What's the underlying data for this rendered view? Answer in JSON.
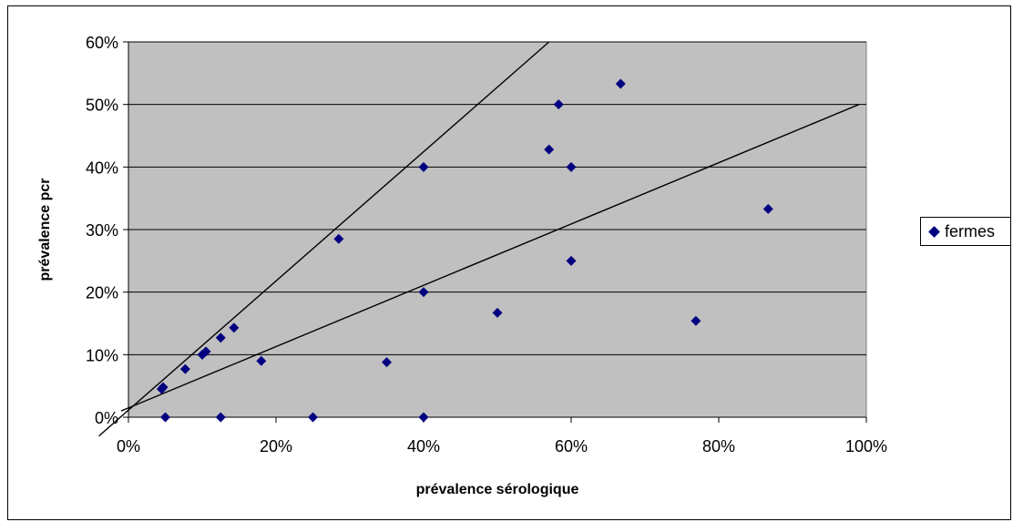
{
  "chart_data": {
    "type": "scatter",
    "xlabel": "prévalence sérologique",
    "ylabel": "prévalence pcr",
    "xlim": [
      0,
      1
    ],
    "ylim": [
      0,
      0.6
    ],
    "x_ticks": [
      "0%",
      "20%",
      "40%",
      "60%",
      "80%",
      "100%"
    ],
    "y_ticks": [
      "0%",
      "10%",
      "20%",
      "30%",
      "40%",
      "50%",
      "60%"
    ],
    "x_tick_values": [
      0,
      0.2,
      0.4,
      0.6,
      0.8,
      1.0
    ],
    "y_tick_values": [
      0,
      0.1,
      0.2,
      0.3,
      0.4,
      0.5,
      0.6
    ],
    "grid": "horizontal",
    "plot_background": "#c0c0c0",
    "marker_color": "#000080",
    "legend_position": "right",
    "series": [
      {
        "name": "fermes",
        "points": [
          [
            0.045,
            0.045
          ],
          [
            0.047,
            0.048
          ],
          [
            0.077,
            0.077
          ],
          [
            0.1,
            0.1
          ],
          [
            0.105,
            0.105
          ],
          [
            0.125,
            0.127
          ],
          [
            0.143,
            0.143
          ],
          [
            0.18,
            0.09
          ],
          [
            0.285,
            0.285
          ],
          [
            0.4,
            0.4
          ],
          [
            0.4,
            0.2
          ],
          [
            0.35,
            0.088
          ],
          [
            0.5,
            0.167
          ],
          [
            0.57,
            0.428
          ],
          [
            0.583,
            0.5
          ],
          [
            0.6,
            0.4
          ],
          [
            0.6,
            0.25
          ],
          [
            0.667,
            0.533
          ],
          [
            0.769,
            0.154
          ],
          [
            0.867,
            0.333
          ],
          [
            0.05,
            0.0
          ],
          [
            0.125,
            0.0
          ],
          [
            0.25,
            0.0
          ],
          [
            0.4,
            0.0
          ]
        ]
      }
    ],
    "reference_lines": [
      {
        "x": [
          -0.04,
          0.57
        ],
        "y": [
          -0.03,
          0.6
        ]
      },
      {
        "x": [
          -0.01,
          0.99
        ],
        "y": [
          0.01,
          0.5
        ]
      }
    ]
  }
}
